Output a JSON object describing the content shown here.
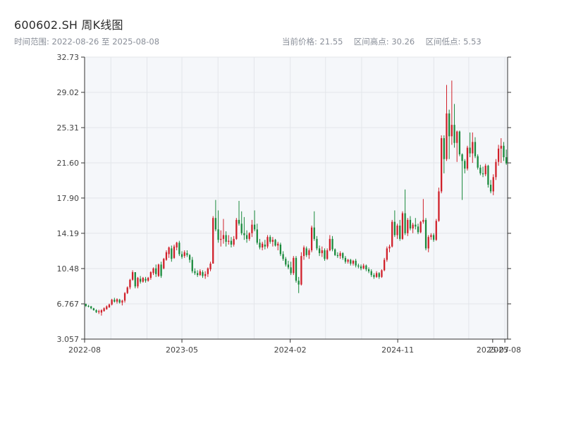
{
  "header": {
    "title": "600602.SH 周K线图",
    "range_label": "时间范围:",
    "range_start": "2022-08-26",
    "range_sep": "至",
    "range_end": "2025-08-08",
    "current_price_label": "当前价格:",
    "current_price": "21.55",
    "high_label": "区间高点:",
    "high_value": "30.26",
    "low_label": "区间低点:",
    "low_value": "5.53"
  },
  "colors": {
    "up": "#d0202a",
    "down": "#1a8a3c",
    "plot_bg": "#f5f7fa",
    "grid": "#e3e6ea",
    "axis": "#333333"
  },
  "chart_data": {
    "type": "candlestick",
    "title": "600602.SH 周K线图",
    "x_start": "2022-08-26",
    "x_end": "2025-08-08",
    "x_tick_labels": [
      "2022-08",
      "2023-05",
      "2024-02",
      "2024-11",
      "2025-07",
      "2025-08"
    ],
    "y_tick_labels": [
      "3.057",
      "6.767",
      "10.48",
      "14.19",
      "17.90",
      "21.60",
      "25.31",
      "29.02",
      "32.73"
    ],
    "ylim": [
      3.057,
      32.73
    ],
    "grid": true,
    "annotations": {
      "current_price": 21.55,
      "high": 30.26,
      "low": 5.53
    },
    "ohlc": [
      [
        6.75,
        6.8,
        6.45,
        6.55
      ],
      [
        6.55,
        6.65,
        6.4,
        6.5
      ],
      [
        6.5,
        6.55,
        6.2,
        6.3
      ],
      [
        6.3,
        6.35,
        6.05,
        6.1
      ],
      [
        6.1,
        6.2,
        5.8,
        5.9
      ],
      [
        5.9,
        6.15,
        5.7,
        6.0
      ],
      [
        5.85,
        6.2,
        5.53,
        6.1
      ],
      [
        6.0,
        6.4,
        5.95,
        6.3
      ],
      [
        6.2,
        6.6,
        6.15,
        6.5
      ],
      [
        6.4,
        6.8,
        6.35,
        6.7
      ],
      [
        6.7,
        7.3,
        6.6,
        7.2
      ],
      [
        7.2,
        7.4,
        6.9,
        7.0
      ],
      [
        7.0,
        7.35,
        6.8,
        7.25
      ],
      [
        7.2,
        7.3,
        6.8,
        6.9
      ],
      [
        6.9,
        7.2,
        6.6,
        7.1
      ],
      [
        7.1,
        8.0,
        6.9,
        7.9
      ],
      [
        7.9,
        8.6,
        7.8,
        8.5
      ],
      [
        8.5,
        9.4,
        8.3,
        9.3
      ],
      [
        9.3,
        10.3,
        9.2,
        10.1
      ],
      [
        10.1,
        10.1,
        8.4,
        8.6
      ],
      [
        8.6,
        9.6,
        8.4,
        9.5
      ],
      [
        9.4,
        9.7,
        8.9,
        9.1
      ],
      [
        9.1,
        9.6,
        9.0,
        9.5
      ],
      [
        9.4,
        9.6,
        9.0,
        9.2
      ],
      [
        9.2,
        9.6,
        9.1,
        9.5
      ],
      [
        9.5,
        10.2,
        9.3,
        10.1
      ],
      [
        10.0,
        10.6,
        9.8,
        10.5
      ],
      [
        10.5,
        10.9,
        9.6,
        9.9
      ],
      [
        9.7,
        11.0,
        9.6,
        10.9
      ],
      [
        10.9,
        11.2,
        9.5,
        9.7
      ],
      [
        10.5,
        11.6,
        10.4,
        11.5
      ],
      [
        11.4,
        12.4,
        11.3,
        12.2
      ],
      [
        12.0,
        12.8,
        11.6,
        12.7
      ],
      [
        12.6,
        12.9,
        11.2,
        11.5
      ],
      [
        11.6,
        13.0,
        11.5,
        12.8
      ],
      [
        12.7,
        13.3,
        12.4,
        13.2
      ],
      [
        13.2,
        13.4,
        11.8,
        12.0
      ],
      [
        12.0,
        12.3,
        11.5,
        11.7
      ],
      [
        11.8,
        12.4,
        11.6,
        12.2
      ],
      [
        12.1,
        12.4,
        11.7,
        11.9
      ],
      [
        11.9,
        12.0,
        11.1,
        11.4
      ],
      [
        11.4,
        11.7,
        10.0,
        10.2
      ],
      [
        10.2,
        10.5,
        9.8,
        10.0
      ],
      [
        10.0,
        10.3,
        9.6,
        9.8
      ],
      [
        9.8,
        10.4,
        9.7,
        10.2
      ],
      [
        10.1,
        10.3,
        9.5,
        9.7
      ],
      [
        9.7,
        10.2,
        9.4,
        9.9
      ],
      [
        9.9,
        10.6,
        9.6,
        10.5
      ],
      [
        10.4,
        11.2,
        10.2,
        11.0
      ],
      [
        11.0,
        16.0,
        11.0,
        15.8
      ],
      [
        15.8,
        17.7,
        14.4,
        14.6
      ],
      [
        14.6,
        16.6,
        13.2,
        13.5
      ],
      [
        13.5,
        14.5,
        12.8,
        13.6
      ],
      [
        13.6,
        15.7,
        13.1,
        14.0
      ],
      [
        14.0,
        14.4,
        12.8,
        13.3
      ],
      [
        13.3,
        14.0,
        13.0,
        13.4
      ],
      [
        13.4,
        13.8,
        12.7,
        13.0
      ],
      [
        13.0,
        13.9,
        12.8,
        13.6
      ],
      [
        13.6,
        15.8,
        13.5,
        15.6
      ],
      [
        15.6,
        17.6,
        15.0,
        15.2
      ],
      [
        15.2,
        16.5,
        14.0,
        14.2
      ],
      [
        14.2,
        15.9,
        13.5,
        14.0
      ],
      [
        14.0,
        14.5,
        13.2,
        13.6
      ],
      [
        13.6,
        14.3,
        13.4,
        14.2
      ],
      [
        14.2,
        15.6,
        13.8,
        15.1
      ],
      [
        15.1,
        16.6,
        14.4,
        14.6
      ],
      [
        14.6,
        15.2,
        13.0,
        13.2
      ],
      [
        13.2,
        13.6,
        12.5,
        12.7
      ],
      [
        12.7,
        13.3,
        12.4,
        13.1
      ],
      [
        13.0,
        13.5,
        12.5,
        12.8
      ],
      [
        12.8,
        14.0,
        12.6,
        13.8
      ],
      [
        13.8,
        14.0,
        13.1,
        13.3
      ],
      [
        13.3,
        13.8,
        12.8,
        13.5
      ],
      [
        13.5,
        13.6,
        12.8,
        12.9
      ],
      [
        12.9,
        13.3,
        12.4,
        13.1
      ],
      [
        13.0,
        13.2,
        11.8,
        12.0
      ],
      [
        12.0,
        12.3,
        11.3,
        11.5
      ],
      [
        11.5,
        11.7,
        10.7,
        10.9
      ],
      [
        10.9,
        11.3,
        10.4,
        10.6
      ],
      [
        10.6,
        11.2,
        9.8,
        10.0
      ],
      [
        10.0,
        11.8,
        9.8,
        11.6
      ],
      [
        11.6,
        11.8,
        9.0,
        9.2
      ],
      [
        9.2,
        9.6,
        7.9,
        8.8
      ],
      [
        8.8,
        12.2,
        8.7,
        11.8
      ],
      [
        11.8,
        12.9,
        11.4,
        12.7
      ],
      [
        12.6,
        12.8,
        11.7,
        11.9
      ],
      [
        11.9,
        12.6,
        11.5,
        12.4
      ],
      [
        12.4,
        15.0,
        12.2,
        14.8
      ],
      [
        14.8,
        16.5,
        13.4,
        13.6
      ],
      [
        13.6,
        13.9,
        12.4,
        12.6
      ],
      [
        12.6,
        12.9,
        11.8,
        12.1
      ],
      [
        12.1,
        12.8,
        11.7,
        12.4
      ],
      [
        12.4,
        12.6,
        11.3,
        11.5
      ],
      [
        11.5,
        12.6,
        11.4,
        12.4
      ],
      [
        12.4,
        14.0,
        12.3,
        13.6
      ],
      [
        13.6,
        13.9,
        12.3,
        12.5
      ],
      [
        12.5,
        12.6,
        11.8,
        11.9
      ],
      [
        11.9,
        12.2,
        11.6,
        11.8
      ],
      [
        11.8,
        12.3,
        11.5,
        12.1
      ],
      [
        12.1,
        12.2,
        11.4,
        11.6
      ],
      [
        11.6,
        11.8,
        11.0,
        11.2
      ],
      [
        11.2,
        11.5,
        11.0,
        11.4
      ],
      [
        11.4,
        11.5,
        10.8,
        11.0
      ],
      [
        11.0,
        11.4,
        10.8,
        11.3
      ],
      [
        11.3,
        11.5,
        10.6,
        10.8
      ],
      [
        10.8,
        11.0,
        10.5,
        10.7
      ],
      [
        10.7,
        10.9,
        10.3,
        10.5
      ],
      [
        10.5,
        11.0,
        10.4,
        10.8
      ],
      [
        10.8,
        10.9,
        10.2,
        10.4
      ],
      [
        10.4,
        10.6,
        10.0,
        10.2
      ],
      [
        10.2,
        10.4,
        9.6,
        9.8
      ],
      [
        9.8,
        10.0,
        9.4,
        9.6
      ],
      [
        9.6,
        10.2,
        9.5,
        10.0
      ],
      [
        10.0,
        10.1,
        9.4,
        9.6
      ],
      [
        9.6,
        10.4,
        9.5,
        10.3
      ],
      [
        10.3,
        11.6,
        10.2,
        11.4
      ],
      [
        11.4,
        12.8,
        11.2,
        12.6
      ],
      [
        12.6,
        13.0,
        12.2,
        12.8
      ],
      [
        12.8,
        15.6,
        12.7,
        15.4
      ],
      [
        15.4,
        16.6,
        13.8,
        14.0
      ],
      [
        14.0,
        15.2,
        13.6,
        15.0
      ],
      [
        15.0,
        15.6,
        13.4,
        13.6
      ],
      [
        13.6,
        16.5,
        13.5,
        16.3
      ],
      [
        16.3,
        18.8,
        14.0,
        14.2
      ],
      [
        14.2,
        15.8,
        13.9,
        15.6
      ],
      [
        15.6,
        16.0,
        14.5,
        14.7
      ],
      [
        14.7,
        15.3,
        14.2,
        15.1
      ],
      [
        15.1,
        15.8,
        14.6,
        14.9
      ],
      [
        14.9,
        15.2,
        14.1,
        14.3
      ],
      [
        14.3,
        15.5,
        14.2,
        15.4
      ],
      [
        15.4,
        17.8,
        15.2,
        15.6
      ],
      [
        15.6,
        15.8,
        12.4,
        12.6
      ],
      [
        12.6,
        14.0,
        12.2,
        13.8
      ],
      [
        13.8,
        14.2,
        13.5,
        14.0
      ],
      [
        14.0,
        14.2,
        13.3,
        13.5
      ],
      [
        13.5,
        15.7,
        13.4,
        15.5
      ],
      [
        15.5,
        19.0,
        15.4,
        18.6
      ],
      [
        18.6,
        24.5,
        18.4,
        24.2
      ],
      [
        24.2,
        24.5,
        20.5,
        22.0
      ],
      [
        22.0,
        29.8,
        21.8,
        26.8
      ],
      [
        26.8,
        27.2,
        22.0,
        24.4
      ],
      [
        24.4,
        30.26,
        23.5,
        25.6
      ],
      [
        25.6,
        27.8,
        23.2,
        23.7
      ],
      [
        23.7,
        25.0,
        21.7,
        24.9
      ],
      [
        24.9,
        25.0,
        22.3,
        22.5
      ],
      [
        22.5,
        22.6,
        17.7,
        21.8
      ],
      [
        21.8,
        22.0,
        20.5,
        21.0
      ],
      [
        21.0,
        23.4,
        20.8,
        23.2
      ],
      [
        23.2,
        24.8,
        22.2,
        22.6
      ],
      [
        22.6,
        24.8,
        21.6,
        23.8
      ],
      [
        23.8,
        24.3,
        22.1,
        22.3
      ],
      [
        22.3,
        22.5,
        20.9,
        21.1
      ],
      [
        21.1,
        21.4,
        20.3,
        20.5
      ],
      [
        20.5,
        21.2,
        20.1,
        20.4
      ],
      [
        20.4,
        21.5,
        20.2,
        21.3
      ],
      [
        21.3,
        21.4,
        19.0,
        19.3
      ],
      [
        19.3,
        19.8,
        18.4,
        18.6
      ],
      [
        18.6,
        20.4,
        18.2,
        20.1
      ],
      [
        20.1,
        22.0,
        19.8,
        21.7
      ],
      [
        21.7,
        23.5,
        21.3,
        23.1
      ],
      [
        23.1,
        24.2,
        21.6,
        23.4
      ],
      [
        23.4,
        23.8,
        21.8,
        22.2
      ],
      [
        22.2,
        23.0,
        21.4,
        21.55
      ]
    ]
  }
}
